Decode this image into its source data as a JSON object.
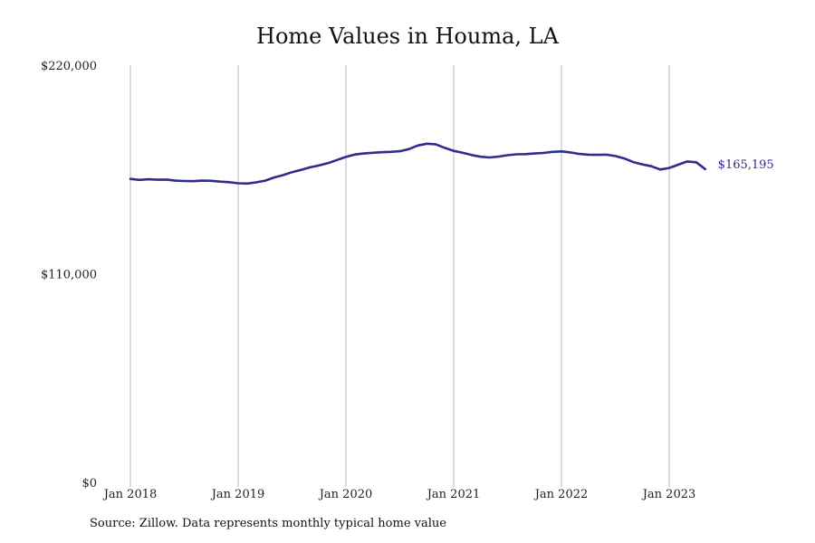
{
  "chart_data": {
    "type": "line",
    "title": "Home Values in Houma, LA",
    "y_tick_labels": [
      "$0",
      "$110,000",
      "$220,000"
    ],
    "y_ticks": [
      0,
      110000,
      220000
    ],
    "ylim": [
      0,
      220000
    ],
    "x_tick_labels": [
      "Jan 2018",
      "Jan 2019",
      "Jan 2020",
      "Jan 2021",
      "Jan 2022",
      "Jan 2023"
    ],
    "grid": "vertical",
    "series": [
      {
        "color": "#2e2d8f",
        "end_label": "$165,195",
        "x": [
          "2018-01",
          "2018-02",
          "2018-03",
          "2018-04",
          "2018-05",
          "2018-06",
          "2018-07",
          "2018-08",
          "2018-09",
          "2018-10",
          "2018-11",
          "2018-12",
          "2019-01",
          "2019-02",
          "2019-03",
          "2019-04",
          "2019-05",
          "2019-06",
          "2019-07",
          "2019-08",
          "2019-09",
          "2019-10",
          "2019-11",
          "2019-12",
          "2020-01",
          "2020-02",
          "2020-03",
          "2020-04",
          "2020-05",
          "2020-06",
          "2020-07",
          "2020-08",
          "2020-09",
          "2020-10",
          "2020-11",
          "2020-12",
          "2021-01",
          "2021-02",
          "2021-03",
          "2021-04",
          "2021-05",
          "2021-06",
          "2021-07",
          "2021-08",
          "2021-09",
          "2021-10",
          "2021-11",
          "2021-12",
          "2022-01",
          "2022-02",
          "2022-03",
          "2022-04",
          "2022-05",
          "2022-06",
          "2022-07",
          "2022-08",
          "2022-09",
          "2022-10",
          "2022-11",
          "2022-12",
          "2023-01",
          "2023-02",
          "2023-03",
          "2023-04",
          "2023-05"
        ],
        "values": [
          160000,
          159500,
          159800,
          159600,
          159700,
          159100,
          158900,
          158800,
          159100,
          159000,
          158600,
          158300,
          157700,
          157600,
          158200,
          159100,
          160800,
          162000,
          163600,
          164800,
          166100,
          167100,
          168300,
          170000,
          171600,
          172900,
          173400,
          173800,
          174100,
          174300,
          174600,
          175700,
          177600,
          178600,
          178300,
          176400,
          174800,
          173800,
          172600,
          171700,
          171300,
          171800,
          172500,
          173000,
          173100,
          173400,
          173700,
          174300,
          174500,
          174000,
          173200,
          172800,
          172700,
          172800,
          172100,
          170800,
          168900,
          167700,
          166700,
          165000,
          165800,
          167500,
          169200,
          168800,
          165195
        ]
      }
    ],
    "source": "Source: Zillow. Data represents monthly typical home value"
  }
}
